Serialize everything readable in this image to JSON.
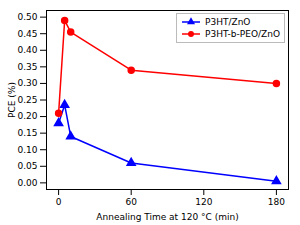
{
  "chart_data": {
    "type": "line",
    "xlabel": "Annealing Time at 120 °C (min)",
    "ylabel": "PCE (%)",
    "x": [
      0,
      5,
      10,
      60,
      180
    ],
    "series": [
      {
        "name": "P3HT/ZnO",
        "color": "#0000ff",
        "marker": "triangle",
        "values": [
          0.18,
          0.235,
          0.14,
          0.06,
          0.005
        ]
      },
      {
        "name": "P3HT-b-PEO/ZnO",
        "color": "#ff0000",
        "marker": "circle",
        "values": [
          0.21,
          0.49,
          0.455,
          0.34,
          0.3
        ]
      }
    ],
    "xlim": [
      -10,
      190
    ],
    "xticks": [
      0,
      60,
      120,
      180
    ],
    "ylim": [
      -0.02,
      0.52
    ],
    "yticks": [
      {
        "value": 0.0,
        "label": "0.00"
      },
      {
        "value": 0.05,
        "label": "0.05"
      },
      {
        "value": 0.1,
        "label": "0.10"
      },
      {
        "value": 0.15,
        "label": "0.15"
      },
      {
        "value": 0.2,
        "label": "0.20"
      },
      {
        "value": 0.25,
        "label": "0.25"
      },
      {
        "value": 0.3,
        "label": "0.30"
      },
      {
        "value": 0.35,
        "label": "0.35"
      },
      {
        "value": 0.4,
        "label": "0.40"
      },
      {
        "value": 0.45,
        "label": "0.45"
      },
      {
        "value": 0.5,
        "label": "0.50"
      }
    ],
    "legend": "upper right",
    "grid": false
  }
}
